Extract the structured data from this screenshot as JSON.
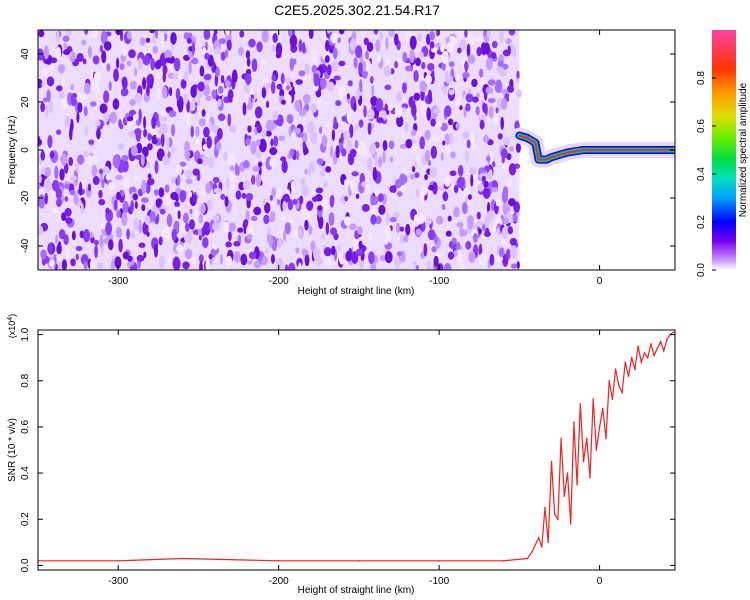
{
  "title": "C2E5.2025.302.21.54.R17",
  "chart_data": [
    {
      "type": "heatmap",
      "xlabel": "Height of straight line (km)",
      "ylabel": "Frequency (Hz)",
      "xlim": [
        -350,
        47
      ],
      "ylim": [
        -50,
        50
      ],
      "x_ticks": [
        -300,
        -200,
        -100,
        0
      ],
      "x_tick_labels": [
        "-300",
        "-200",
        "-100",
        "0"
      ],
      "y_ticks": [
        -40,
        -20,
        0,
        20,
        40
      ],
      "y_tick_labels": [
        "-40",
        "-20",
        "0",
        "20",
        "40"
      ],
      "noise_region_x": [
        -350,
        -50
      ],
      "signal_track": [
        {
          "x": -50,
          "y": 6
        },
        {
          "x": -45,
          "y": 5
        },
        {
          "x": -40,
          "y": 3
        },
        {
          "x": -38,
          "y": -4
        },
        {
          "x": -33,
          "y": -4
        },
        {
          "x": -30,
          "y": -3
        },
        {
          "x": -25,
          "y": -2
        },
        {
          "x": -20,
          "y": -1
        },
        {
          "x": -10,
          "y": 0
        },
        {
          "x": 0,
          "y": 0
        },
        {
          "x": 20,
          "y": 0
        },
        {
          "x": 47,
          "y": 0
        }
      ],
      "colorbar": {
        "label": "Normalized spectral amplitude",
        "range": [
          0,
          1
        ],
        "ticks": [
          0.0,
          0.2,
          0.4,
          0.6,
          0.8
        ],
        "tick_labels": [
          "0.0",
          "0.2",
          "0.4",
          "0.6",
          "0.8"
        ]
      },
      "grid": false
    },
    {
      "type": "line",
      "xlabel": "Height of straight line (km)",
      "ylabel": "SNR (10 * v/v)",
      "y_multiplier": "(x10",
      "y_multiplier_exp": "4",
      "y_multiplier_close": ")",
      "xlim": [
        -350,
        47
      ],
      "ylim": [
        -0.02,
        1.02
      ],
      "x_ticks": [
        -300,
        -200,
        -100,
        0
      ],
      "x_tick_labels": [
        "-300",
        "-200",
        "-100",
        "0"
      ],
      "y_ticks": [
        0.0,
        0.2,
        0.4,
        0.6,
        0.8,
        1.0
      ],
      "y_tick_labels": [
        "0.0",
        "0.2",
        "0.4",
        "0.6",
        "0.8",
        "1.0"
      ],
      "series": [
        {
          "color": "#ee2222",
          "x": [
            -350,
            -300,
            -260,
            -200,
            -150,
            -100,
            -60,
            -45,
            -42,
            -38,
            -36,
            -34,
            -32,
            -30,
            -28,
            -26,
            -24,
            -22,
            -20,
            -18,
            -16,
            -14,
            -12,
            -10,
            -8,
            -6,
            -4,
            -2,
            0,
            2,
            4,
            6,
            8,
            10,
            12,
            14,
            16,
            18,
            20,
            22,
            24,
            26,
            28,
            30,
            32,
            34,
            36,
            38,
            40,
            42,
            44,
            46
          ],
          "values": [
            0.02,
            0.02,
            0.03,
            0.02,
            0.02,
            0.02,
            0.02,
            0.03,
            0.06,
            0.12,
            0.08,
            0.25,
            0.1,
            0.45,
            0.22,
            0.2,
            0.55,
            0.3,
            0.4,
            0.18,
            0.62,
            0.35,
            0.7,
            0.45,
            0.55,
            0.38,
            0.72,
            0.5,
            0.6,
            0.68,
            0.55,
            0.8,
            0.72,
            0.85,
            0.78,
            0.75,
            0.88,
            0.82,
            0.9,
            0.85,
            0.95,
            0.88,
            0.92,
            0.9,
            0.96,
            0.91,
            0.94,
            0.97,
            0.93,
            0.98,
            1.0,
            1.01
          ]
        }
      ],
      "grid": false
    }
  ]
}
